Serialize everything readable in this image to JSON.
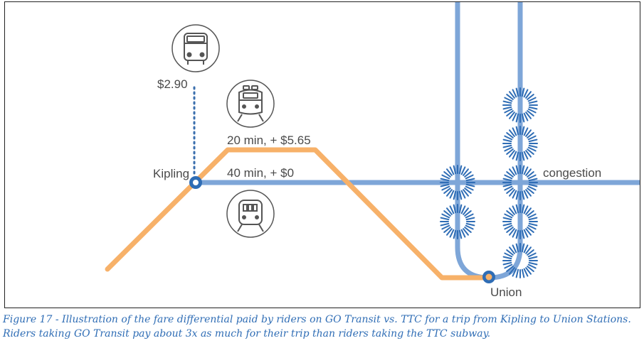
{
  "labels": {
    "bus_fare": "$2.90",
    "go_trip": "20 min, + $5.65",
    "ttc_trip": "40 min, + $0",
    "kipling": "Kipling",
    "union": "Union",
    "congestion": "congestion"
  },
  "icons": {
    "bus": "bus-icon",
    "go_train": "train-icon",
    "subway": "subway-icon"
  },
  "colors": {
    "subway_line": "#7ea6d8",
    "go_line": "#f7b169",
    "station_ring": "#2f6db5",
    "bus_dots": "#3b6fae",
    "caption": "#2f6db5"
  },
  "caption": "Figure 17 - Illustration of the fare differential paid by riders on GO Transit vs. TTC for a trip from Kipling to Union Stations. Riders taking GO Transit pay about 3x as much for their trip than riders taking the TTC subway."
}
